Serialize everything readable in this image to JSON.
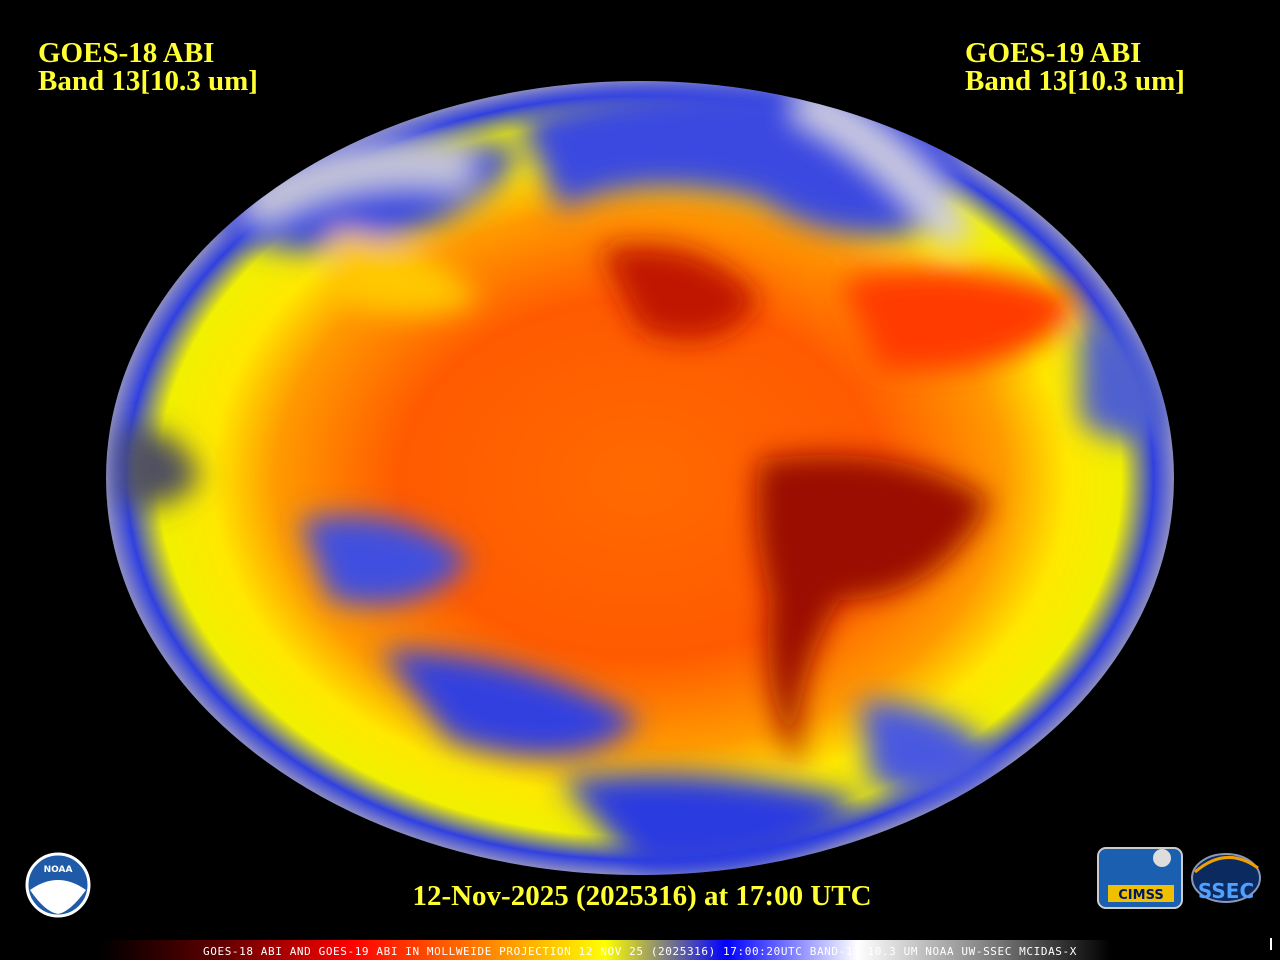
{
  "labels": {
    "left_satellite": "GOES-18 ABI",
    "left_band": "Band 13[10.3 um]",
    "right_satellite": "GOES-19 ABI",
    "right_band": "Band 13[10.3 um]",
    "timestamp": "12-Nov-2025 (2025316) at 17:00 UTC"
  },
  "colorbar": {
    "caption": "GOES-18 ABI AND GOES-19 ABI IN MOLLWEIDE PROJECTION 12 NOV 25 (2025316) 17:00:20UTC BAND-13 10.3 UM NOAA UW-SSEC MCIDAS-X"
  },
  "logos": {
    "noaa": "NOAA",
    "cimss": "CIMSS",
    "ssec": "SSEC"
  }
}
